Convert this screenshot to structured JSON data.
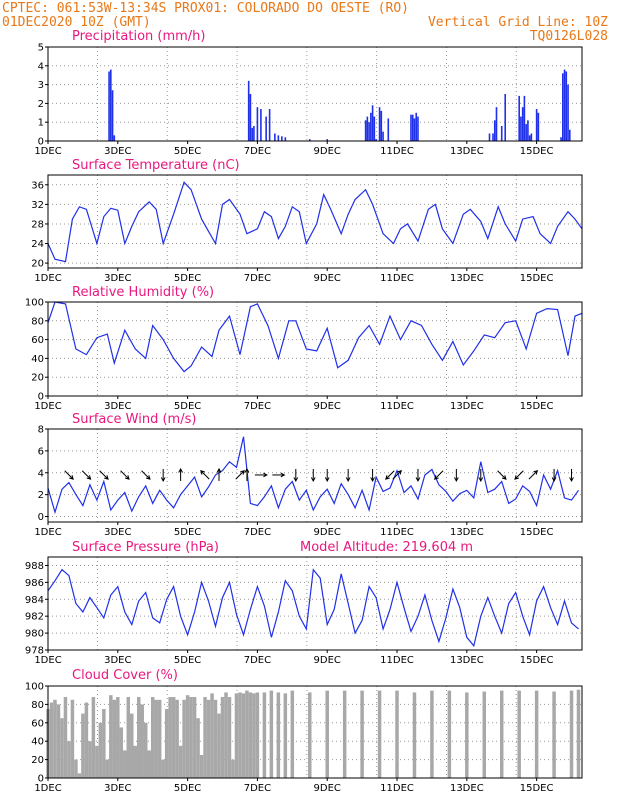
{
  "header": {
    "line1": "CPTEC:  061:53W-13:34S  PROX01: COLORADO DO OESTE (RO)",
    "line2_left": "01DEC2020 10Z (GMT)",
    "line2_right": "Vertical Grid Line: 10Z",
    "line3_right": "TQ0126L028"
  },
  "colors": {
    "header": "#e87818",
    "title": "#e8187e",
    "series": "#2030e8",
    "cloud": "#a8a8a8"
  },
  "x_tick_labels": [
    "1DEC",
    "3DEC",
    "5DEC",
    "7DEC",
    "9DEC",
    "11DEC",
    "13DEC",
    "15DEC"
  ],
  "chart_data": [
    {
      "id": "precip",
      "type": "bar",
      "title": "Precipitation (mm/h)",
      "ylim": [
        0,
        5
      ],
      "yticks": [
        0,
        1,
        2,
        3,
        4,
        5
      ],
      "color": "#2030e8",
      "x": [
        2.75,
        2.8,
        2.85,
        2.9,
        6.75,
        6.8,
        6.85,
        6.9,
        7.0,
        7.1,
        7.25,
        7.35,
        7.5,
        7.6,
        7.7,
        7.8,
        8.5,
        9.0,
        10.1,
        10.15,
        10.2,
        10.25,
        10.3,
        10.35,
        10.4,
        10.5,
        10.55,
        10.6,
        10.75,
        11.4,
        11.45,
        11.5,
        11.55,
        11.6,
        13.65,
        13.75,
        13.8,
        13.85,
        14.0,
        14.1,
        14.5,
        14.55,
        14.6,
        14.65,
        14.7,
        14.75,
        14.8,
        14.85,
        15.0,
        15.05,
        15.7,
        15.75,
        15.8,
        15.85,
        15.9,
        15.95
      ],
      "values": [
        3.7,
        3.8,
        2.7,
        0.3,
        3.2,
        2.5,
        0.7,
        0.8,
        1.8,
        1.7,
        1.3,
        1.7,
        0.4,
        0.3,
        0.25,
        0.2,
        0.1,
        0.1,
        1.1,
        1.3,
        1.0,
        1.5,
        1.9,
        1.3,
        0.1,
        1.8,
        1.6,
        0.5,
        1.2,
        1.4,
        1.4,
        1.2,
        1.5,
        1.3,
        0.4,
        0.4,
        1.1,
        1.8,
        0.8,
        2.5,
        2.4,
        1.3,
        1.8,
        2.4,
        0.9,
        1.1,
        0.3,
        0.4,
        1.7,
        1.5,
        0.2,
        3.6,
        3.8,
        3.7,
        3.0,
        0.6
      ]
    },
    {
      "id": "temperature",
      "type": "line",
      "title": "Surface Temperature (nC)",
      "ylim": [
        19,
        38
      ],
      "yticks": [
        20,
        24,
        28,
        32,
        36
      ],
      "color": "#2030e8",
      "x": [
        1.0,
        1.2,
        1.5,
        1.7,
        1.9,
        2.1,
        2.4,
        2.6,
        2.8,
        3.0,
        3.2,
        3.4,
        3.6,
        3.9,
        4.1,
        4.3,
        4.6,
        4.9,
        5.1,
        5.4,
        5.6,
        5.8,
        6.0,
        6.2,
        6.5,
        6.7,
        7.0,
        7.2,
        7.4,
        7.6,
        7.8,
        8.0,
        8.2,
        8.4,
        8.7,
        8.9,
        9.1,
        9.4,
        9.6,
        9.8,
        10.1,
        10.3,
        10.6,
        10.9,
        11.1,
        11.3,
        11.6,
        11.9,
        12.1,
        12.3,
        12.6,
        12.9,
        13.1,
        13.4,
        13.6,
        13.9,
        14.1,
        14.4,
        14.6,
        14.9,
        15.1,
        15.4,
        15.6,
        15.9,
        16.1,
        16.3
      ],
      "values": [
        24,
        20.8,
        20.3,
        29,
        31.5,
        31,
        24,
        29.5,
        31.2,
        30.8,
        24,
        27.5,
        30.5,
        32.5,
        31,
        24,
        30,
        36.5,
        35,
        29,
        26.5,
        24,
        32,
        33,
        30,
        26,
        27,
        30.5,
        29.5,
        25,
        27.5,
        31.5,
        30.5,
        24,
        28,
        34,
        31,
        26,
        30,
        33,
        35,
        32,
        26,
        24,
        27,
        28,
        24.5,
        31,
        32,
        27,
        24,
        30,
        31,
        28.5,
        25,
        31.5,
        28,
        24.5,
        29,
        29.5,
        26,
        24,
        27.5,
        30.5,
        29,
        27
      ]
    },
    {
      "id": "humidity",
      "type": "line",
      "title": "Relative Humidity (%)",
      "ylim": [
        0,
        100
      ],
      "yticks": [
        0,
        20,
        40,
        60,
        80,
        100
      ],
      "color": "#2030e8",
      "x": [
        1.0,
        1.2,
        1.5,
        1.8,
        2.1,
        2.4,
        2.7,
        2.9,
        3.2,
        3.5,
        3.8,
        4.0,
        4.3,
        4.6,
        4.9,
        5.1,
        5.4,
        5.7,
        5.9,
        6.2,
        6.5,
        6.8,
        7.0,
        7.3,
        7.6,
        7.9,
        8.1,
        8.4,
        8.7,
        9.0,
        9.3,
        9.6,
        9.9,
        10.2,
        10.5,
        10.8,
        11.1,
        11.4,
        11.7,
        12.0,
        12.3,
        12.6,
        12.9,
        13.2,
        13.5,
        13.8,
        14.1,
        14.4,
        14.7,
        15.0,
        15.3,
        15.6,
        15.9,
        16.1,
        16.3
      ],
      "values": [
        78,
        100,
        98,
        50,
        44,
        62,
        66,
        35,
        70,
        50,
        40,
        75,
        60,
        40,
        26,
        32,
        52,
        42,
        70,
        85,
        44,
        95,
        98,
        75,
        40,
        80,
        80,
        50,
        48,
        72,
        30,
        38,
        62,
        75,
        55,
        85,
        60,
        80,
        75,
        55,
        38,
        58,
        33,
        48,
        65,
        62,
        78,
        80,
        50,
        88,
        93,
        92,
        43,
        85,
        88
      ]
    },
    {
      "id": "wind",
      "type": "line",
      "title": "Surface Wind (m/s)",
      "ylim": [
        -0.5,
        8
      ],
      "yticks": [
        0,
        2,
        4,
        6,
        8
      ],
      "color": "#2030e8",
      "x": [
        1.0,
        1.2,
        1.4,
        1.6,
        1.8,
        2.0,
        2.2,
        2.4,
        2.6,
        2.8,
        3.0,
        3.2,
        3.4,
        3.6,
        3.8,
        4.0,
        4.2,
        4.4,
        4.6,
        4.8,
        5.0,
        5.2,
        5.4,
        5.6,
        5.8,
        6.0,
        6.2,
        6.4,
        6.6,
        6.8,
        7.0,
        7.2,
        7.4,
        7.6,
        7.8,
        8.0,
        8.2,
        8.4,
        8.6,
        8.8,
        9.0,
        9.2,
        9.4,
        9.6,
        9.8,
        10.0,
        10.2,
        10.4,
        10.6,
        10.8,
        11.0,
        11.2,
        11.4,
        11.6,
        11.8,
        12.0,
        12.2,
        12.4,
        12.6,
        12.8,
        13.0,
        13.2,
        13.4,
        13.6,
        13.8,
        14.0,
        14.2,
        14.4,
        14.6,
        14.8,
        15.0,
        15.2,
        15.4,
        15.6,
        15.8,
        16.0,
        16.2
      ],
      "values": [
        2.6,
        0.4,
        2.5,
        3.1,
        2.0,
        1.0,
        2.9,
        1.5,
        3.2,
        0.6,
        1.5,
        2.2,
        0.5,
        1.8,
        2.8,
        1.2,
        2.4,
        1.5,
        0.8,
        2.0,
        2.8,
        3.6,
        1.8,
        2.7,
        3.8,
        4.2,
        5.0,
        4.5,
        7.3,
        1.2,
        1.0,
        1.8,
        2.8,
        0.8,
        2.5,
        3.2,
        1.5,
        2.4,
        0.6,
        1.8,
        2.5,
        1.2,
        3.0,
        2.0,
        0.8,
        2.4,
        0.6,
        3.6,
        2.3,
        2.6,
        4.2,
        2.2,
        2.8,
        1.6,
        3.8,
        4.3,
        2.9,
        2.3,
        1.4,
        2.1,
        2.4,
        1.7,
        5.0,
        2.2,
        2.5,
        3.2,
        1.2,
        1.6,
        2.8,
        2.3,
        1.0,
        3.8,
        2.5,
        4.2,
        1.7,
        1.5,
        2.4
      ],
      "arrows": [
        {
          "x": 1.6,
          "dir": "SE"
        },
        {
          "x": 2.1,
          "dir": "SE"
        },
        {
          "x": 2.6,
          "dir": "SE"
        },
        {
          "x": 3.2,
          "dir": "SE"
        },
        {
          "x": 3.8,
          "dir": "SE"
        },
        {
          "x": 4.3,
          "dir": "S"
        },
        {
          "x": 4.8,
          "dir": "N"
        },
        {
          "x": 5.5,
          "dir": "NW"
        },
        {
          "x": 5.9,
          "dir": "N"
        },
        {
          "x": 6.5,
          "dir": "NE"
        },
        {
          "x": 6.7,
          "dir": "N"
        },
        {
          "x": 7.1,
          "dir": "E"
        },
        {
          "x": 7.6,
          "dir": "E"
        },
        {
          "x": 8.1,
          "dir": "S"
        },
        {
          "x": 8.6,
          "dir": "S"
        },
        {
          "x": 9.0,
          "dir": "S"
        },
        {
          "x": 9.6,
          "dir": "S"
        },
        {
          "x": 10.3,
          "dir": "S"
        },
        {
          "x": 10.8,
          "dir": "SW"
        },
        {
          "x": 11.0,
          "dir": "NE"
        },
        {
          "x": 11.6,
          "dir": "S"
        },
        {
          "x": 12.2,
          "dir": "SW"
        },
        {
          "x": 12.7,
          "dir": "S"
        },
        {
          "x": 13.4,
          "dir": "S"
        },
        {
          "x": 14.0,
          "dir": "SE"
        },
        {
          "x": 14.5,
          "dir": "SW"
        },
        {
          "x": 14.9,
          "dir": "NE"
        },
        {
          "x": 15.5,
          "dir": "S"
        },
        {
          "x": 16.0,
          "dir": "S"
        }
      ]
    },
    {
      "id": "pressure",
      "type": "line",
      "title": "Surface Pressure (hPa)",
      "title2": "Model Altitude: 219.604 m",
      "ylim": [
        978,
        989
      ],
      "yticks": [
        978,
        980,
        982,
        984,
        986,
        988
      ],
      "color": "#2030e8",
      "x": [
        1.0,
        1.2,
        1.4,
        1.6,
        1.8,
        2.0,
        2.2,
        2.4,
        2.6,
        2.8,
        3.0,
        3.2,
        3.4,
        3.6,
        3.8,
        4.0,
        4.2,
        4.4,
        4.6,
        4.8,
        5.0,
        5.2,
        5.4,
        5.6,
        5.8,
        6.0,
        6.2,
        6.4,
        6.6,
        6.8,
        7.0,
        7.2,
        7.4,
        7.6,
        7.8,
        8.0,
        8.2,
        8.4,
        8.6,
        8.8,
        9.0,
        9.2,
        9.4,
        9.6,
        9.8,
        10.0,
        10.2,
        10.4,
        10.6,
        10.8,
        11.0,
        11.2,
        11.4,
        11.6,
        11.8,
        12.0,
        12.2,
        12.4,
        12.6,
        12.8,
        13.0,
        13.2,
        13.4,
        13.6,
        13.8,
        14.0,
        14.2,
        14.4,
        14.6,
        14.8,
        15.0,
        15.2,
        15.4,
        15.6,
        15.8,
        16.0,
        16.2
      ],
      "values": [
        985,
        986.2,
        987.5,
        986.8,
        983.5,
        982.5,
        984.2,
        983,
        981.8,
        984.5,
        985.5,
        982.5,
        981,
        983.8,
        984.8,
        981.8,
        981.2,
        984,
        985.5,
        982,
        979.8,
        982.5,
        986,
        983.8,
        980.8,
        984.2,
        986,
        982.2,
        979.8,
        982.8,
        985.5,
        983.2,
        979.5,
        982.5,
        986.2,
        985,
        982,
        980.5,
        987.5,
        986.5,
        981,
        982.8,
        987,
        983.5,
        980,
        981.5,
        985.5,
        984.2,
        980.5,
        982.8,
        986,
        983,
        980.2,
        982,
        984.5,
        981.5,
        979,
        981.8,
        985.2,
        983,
        979.5,
        978.5,
        982,
        984.2,
        982,
        980,
        983.5,
        984.8,
        982,
        979.8,
        983.8,
        985.5,
        983,
        981,
        983.8,
        981.2,
        980.5
      ]
    },
    {
      "id": "cloud",
      "type": "bar",
      "title": "Cloud Cover (%)",
      "ylim": [
        0,
        100
      ],
      "yticks": [
        0,
        20,
        40,
        60,
        80,
        100
      ],
      "color": "#a8a8a8",
      "x": [
        1.0,
        1.1,
        1.2,
        1.3,
        1.4,
        1.5,
        1.6,
        1.7,
        1.8,
        1.9,
        2.0,
        2.1,
        2.2,
        2.3,
        2.4,
        2.5,
        2.6,
        2.7,
        2.8,
        2.9,
        3.0,
        3.1,
        3.2,
        3.3,
        3.4,
        3.5,
        3.6,
        3.7,
        3.8,
        3.9,
        4.0,
        4.1,
        4.2,
        4.3,
        4.4,
        4.5,
        4.6,
        4.7,
        4.8,
        4.9,
        5.0,
        5.1,
        5.2,
        5.3,
        5.4,
        5.5,
        5.6,
        5.7,
        5.8,
        5.9,
        6.0,
        6.1,
        6.2,
        6.3,
        6.4,
        6.5,
        6.6,
        6.7,
        6.8,
        6.9,
        7.0,
        7.2,
        7.4,
        7.6,
        7.8,
        8.0,
        8.5,
        9.0,
        9.5,
        10.0,
        10.5,
        11.0,
        11.5,
        12.0,
        12.5,
        13.0,
        13.5,
        14.0,
        14.5,
        15.0,
        15.5,
        16.0,
        16.2
      ],
      "values": [
        75,
        82,
        85,
        80,
        65,
        88,
        40,
        85,
        20,
        5,
        70,
        82,
        40,
        88,
        35,
        60,
        75,
        20,
        90,
        85,
        88,
        55,
        30,
        88,
        70,
        35,
        88,
        80,
        60,
        30,
        88,
        85,
        85,
        20,
        75,
        88,
        88,
        85,
        35,
        85,
        90,
        88,
        88,
        65,
        25,
        88,
        85,
        92,
        85,
        70,
        88,
        93,
        88,
        20,
        92,
        93,
        92,
        95,
        93,
        92,
        93,
        93,
        95,
        93,
        92,
        95,
        93,
        95,
        95,
        95,
        95,
        95,
        93,
        95,
        95,
        93,
        94,
        95,
        95,
        95,
        94,
        95,
        96
      ]
    }
  ]
}
